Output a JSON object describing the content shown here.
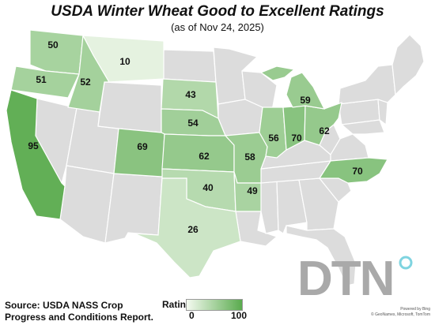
{
  "title": "USDA Winter Wheat Good to Excellent Ratings",
  "subtitle": "(as of Nov 24, 2025)",
  "source": {
    "line1": "Source: USDA NASS Crop",
    "line2": "Progress and Conditions Report."
  },
  "legend": {
    "title": "Ratings",
    "min": "0",
    "max": "100",
    "color_low": "#f4faf0",
    "color_high": "#5aab4e"
  },
  "logo_text": "DTN",
  "credits": {
    "line1": "Powered by Bing",
    "line2": "© GeoNames, Microsoft, TomTom"
  },
  "colors": {
    "no_data_fill": "#dcdcdc",
    "border": "#ffffff",
    "logo": "#a9a9a9",
    "logo_accent": "#7fd4e0"
  },
  "states": [
    {
      "state": "Washington",
      "rating": 50,
      "label": "50"
    },
    {
      "state": "Oregon",
      "rating": 51,
      "label": "51"
    },
    {
      "state": "California",
      "rating": 95,
      "label": "95"
    },
    {
      "state": "Idaho",
      "rating": 52,
      "label": "52"
    },
    {
      "state": "Montana",
      "rating": 10,
      "label": "10"
    },
    {
      "state": "South Dakota",
      "rating": 43,
      "label": "43"
    },
    {
      "state": "Nebraska",
      "rating": 54,
      "label": "54"
    },
    {
      "state": "Colorado",
      "rating": 69,
      "label": "69"
    },
    {
      "state": "Kansas",
      "rating": 62,
      "label": "62"
    },
    {
      "state": "Oklahoma",
      "rating": 40,
      "label": "40"
    },
    {
      "state": "Texas",
      "rating": 26,
      "label": "26"
    },
    {
      "state": "Missouri",
      "rating": 58,
      "label": "58"
    },
    {
      "state": "Arkansas",
      "rating": 49,
      "label": "49"
    },
    {
      "state": "Illinois",
      "rating": 56,
      "label": "56"
    },
    {
      "state": "Indiana",
      "rating": 70,
      "label": "70"
    },
    {
      "state": "Ohio",
      "rating": 62,
      "label": "62"
    },
    {
      "state": "Michigan",
      "rating": 59,
      "label": "59"
    },
    {
      "state": "North Carolina",
      "rating": 70,
      "label": "70"
    }
  ]
}
